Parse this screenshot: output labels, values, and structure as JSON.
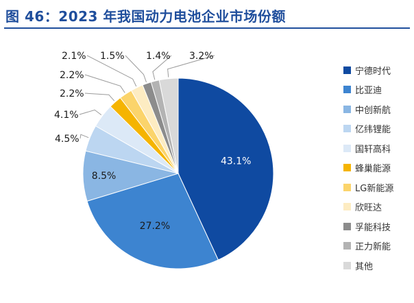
{
  "figure": {
    "title": "图 46：2023 年我国动力电池企业市场份额"
  },
  "chart_data": {
    "type": "pie",
    "title": "",
    "start_angle_deg": 0,
    "direction": "clockwise",
    "legend_position": "right",
    "slices": [
      {
        "name": "宁德时代",
        "value": 43.1,
        "label": "43.1%",
        "color": "#0f4aa1"
      },
      {
        "name": "比亚迪",
        "value": 27.2,
        "label": "27.2%",
        "color": "#3d84d0"
      },
      {
        "name": "中创新航",
        "value": 8.5,
        "label": "8.5%",
        "color": "#8ab6e3"
      },
      {
        "name": "亿纬锂能",
        "value": 4.5,
        "label": "4.5%",
        "color": "#bcd6f1"
      },
      {
        "name": "国轩高科",
        "value": 4.1,
        "label": "4.1%",
        "color": "#dce9f7"
      },
      {
        "name": "蜂巢能源",
        "value": 2.2,
        "label": "2.2%",
        "color": "#f5b400"
      },
      {
        "name": "LG新能源",
        "value": 2.2,
        "label": "2.2%",
        "color": "#fbd46b"
      },
      {
        "name": "欣旺达",
        "value": 2.1,
        "label": "2.1%",
        "color": "#fdecc2"
      },
      {
        "name": "孚能科技",
        "value": 1.5,
        "label": "1.5%",
        "color": "#8c8c8c"
      },
      {
        "name": "正力新能",
        "value": 1.4,
        "label": "1.4%",
        "color": "#b3b3b3"
      },
      {
        "name": "其他",
        "value": 3.2,
        "label": "3.2%",
        "color": "#d9d9d9"
      }
    ]
  }
}
